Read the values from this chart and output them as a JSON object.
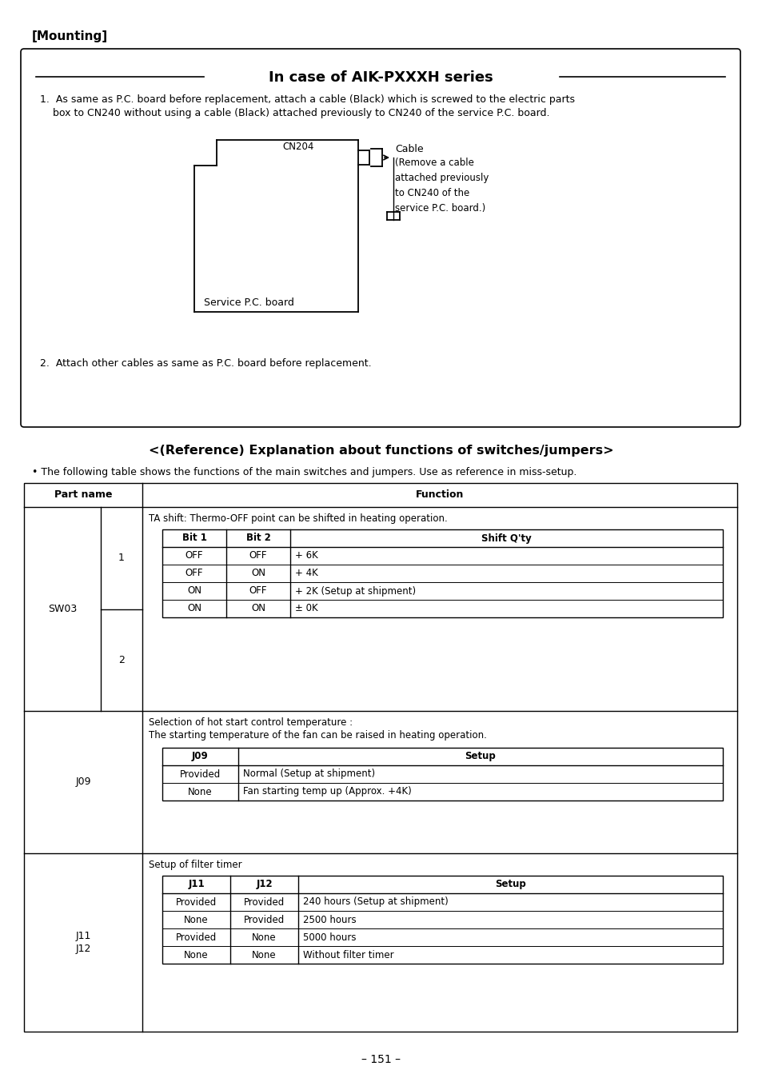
{
  "page_title": "[Mounting]",
  "section1_title": "In case of AIK-PXXXH series",
  "section1_text1a": "1.  As same as P.C. board before replacement, attach a cable (Black) which is screwed to the electric parts",
  "section1_text1b": "    box to CN240 without using a cable (Black) attached previously to CN240 of the service P.C. board.",
  "section1_text2": "2.  Attach other cables as same as P.C. board before replacement.",
  "diagram_label_cn204": "CN204",
  "diagram_label_cable": "Cable",
  "diagram_label_remove": "(Remove a cable\nattached previously\nto CN240 of the\nservice P.C. board.)",
  "diagram_label_board": "Service P.C. board",
  "section2_title": "<(Reference) Explanation about functions of switches/jumpers>",
  "section2_bullet": "• The following table shows the functions of the main switches and jumpers. Use as reference in miss-setup.",
  "table_header_part": "Part name",
  "table_header_func": "Function",
  "sw03_name": "SW03",
  "sw03_sub1": "1",
  "sw03_sub2": "2",
  "sw03_desc": "TA shift: Thermo-OFF point can be shifted in heating operation.",
  "sw03_inner_headers": [
    "Bit 1",
    "Bit 2",
    "Shift Q'ty"
  ],
  "sw03_inner_rows": [
    [
      "OFF",
      "OFF",
      "+ 6K"
    ],
    [
      "OFF",
      "ON",
      "+ 4K"
    ],
    [
      "ON",
      "OFF",
      "+ 2K (Setup at shipment)"
    ],
    [
      "ON",
      "ON",
      "± 0K"
    ]
  ],
  "j09_name": "J09",
  "j09_desc1": "Selection of hot start control temperature :",
  "j09_desc2": "The starting temperature of the fan can be raised in heating operation.",
  "j09_inner_headers": [
    "J09",
    "Setup"
  ],
  "j09_inner_rows": [
    [
      "Provided",
      "Normal (Setup at shipment)"
    ],
    [
      "None",
      "Fan starting temp up (Approx. +4K)"
    ]
  ],
  "j11j12_name1": "J11",
  "j11j12_name2": "J12",
  "j11j12_desc": "Setup of filter timer",
  "j11j12_inner_headers": [
    "J11",
    "J12",
    "Setup"
  ],
  "j11j12_inner_rows": [
    [
      "Provided",
      "Provided",
      "240 hours (Setup at shipment)"
    ],
    [
      "None",
      "Provided",
      "2500 hours"
    ],
    [
      "Provided",
      "None",
      "5000 hours"
    ],
    [
      "None",
      "None",
      "Without filter timer"
    ]
  ],
  "page_number": "– 151 –",
  "bg_color": "#ffffff",
  "text_color": "#000000"
}
